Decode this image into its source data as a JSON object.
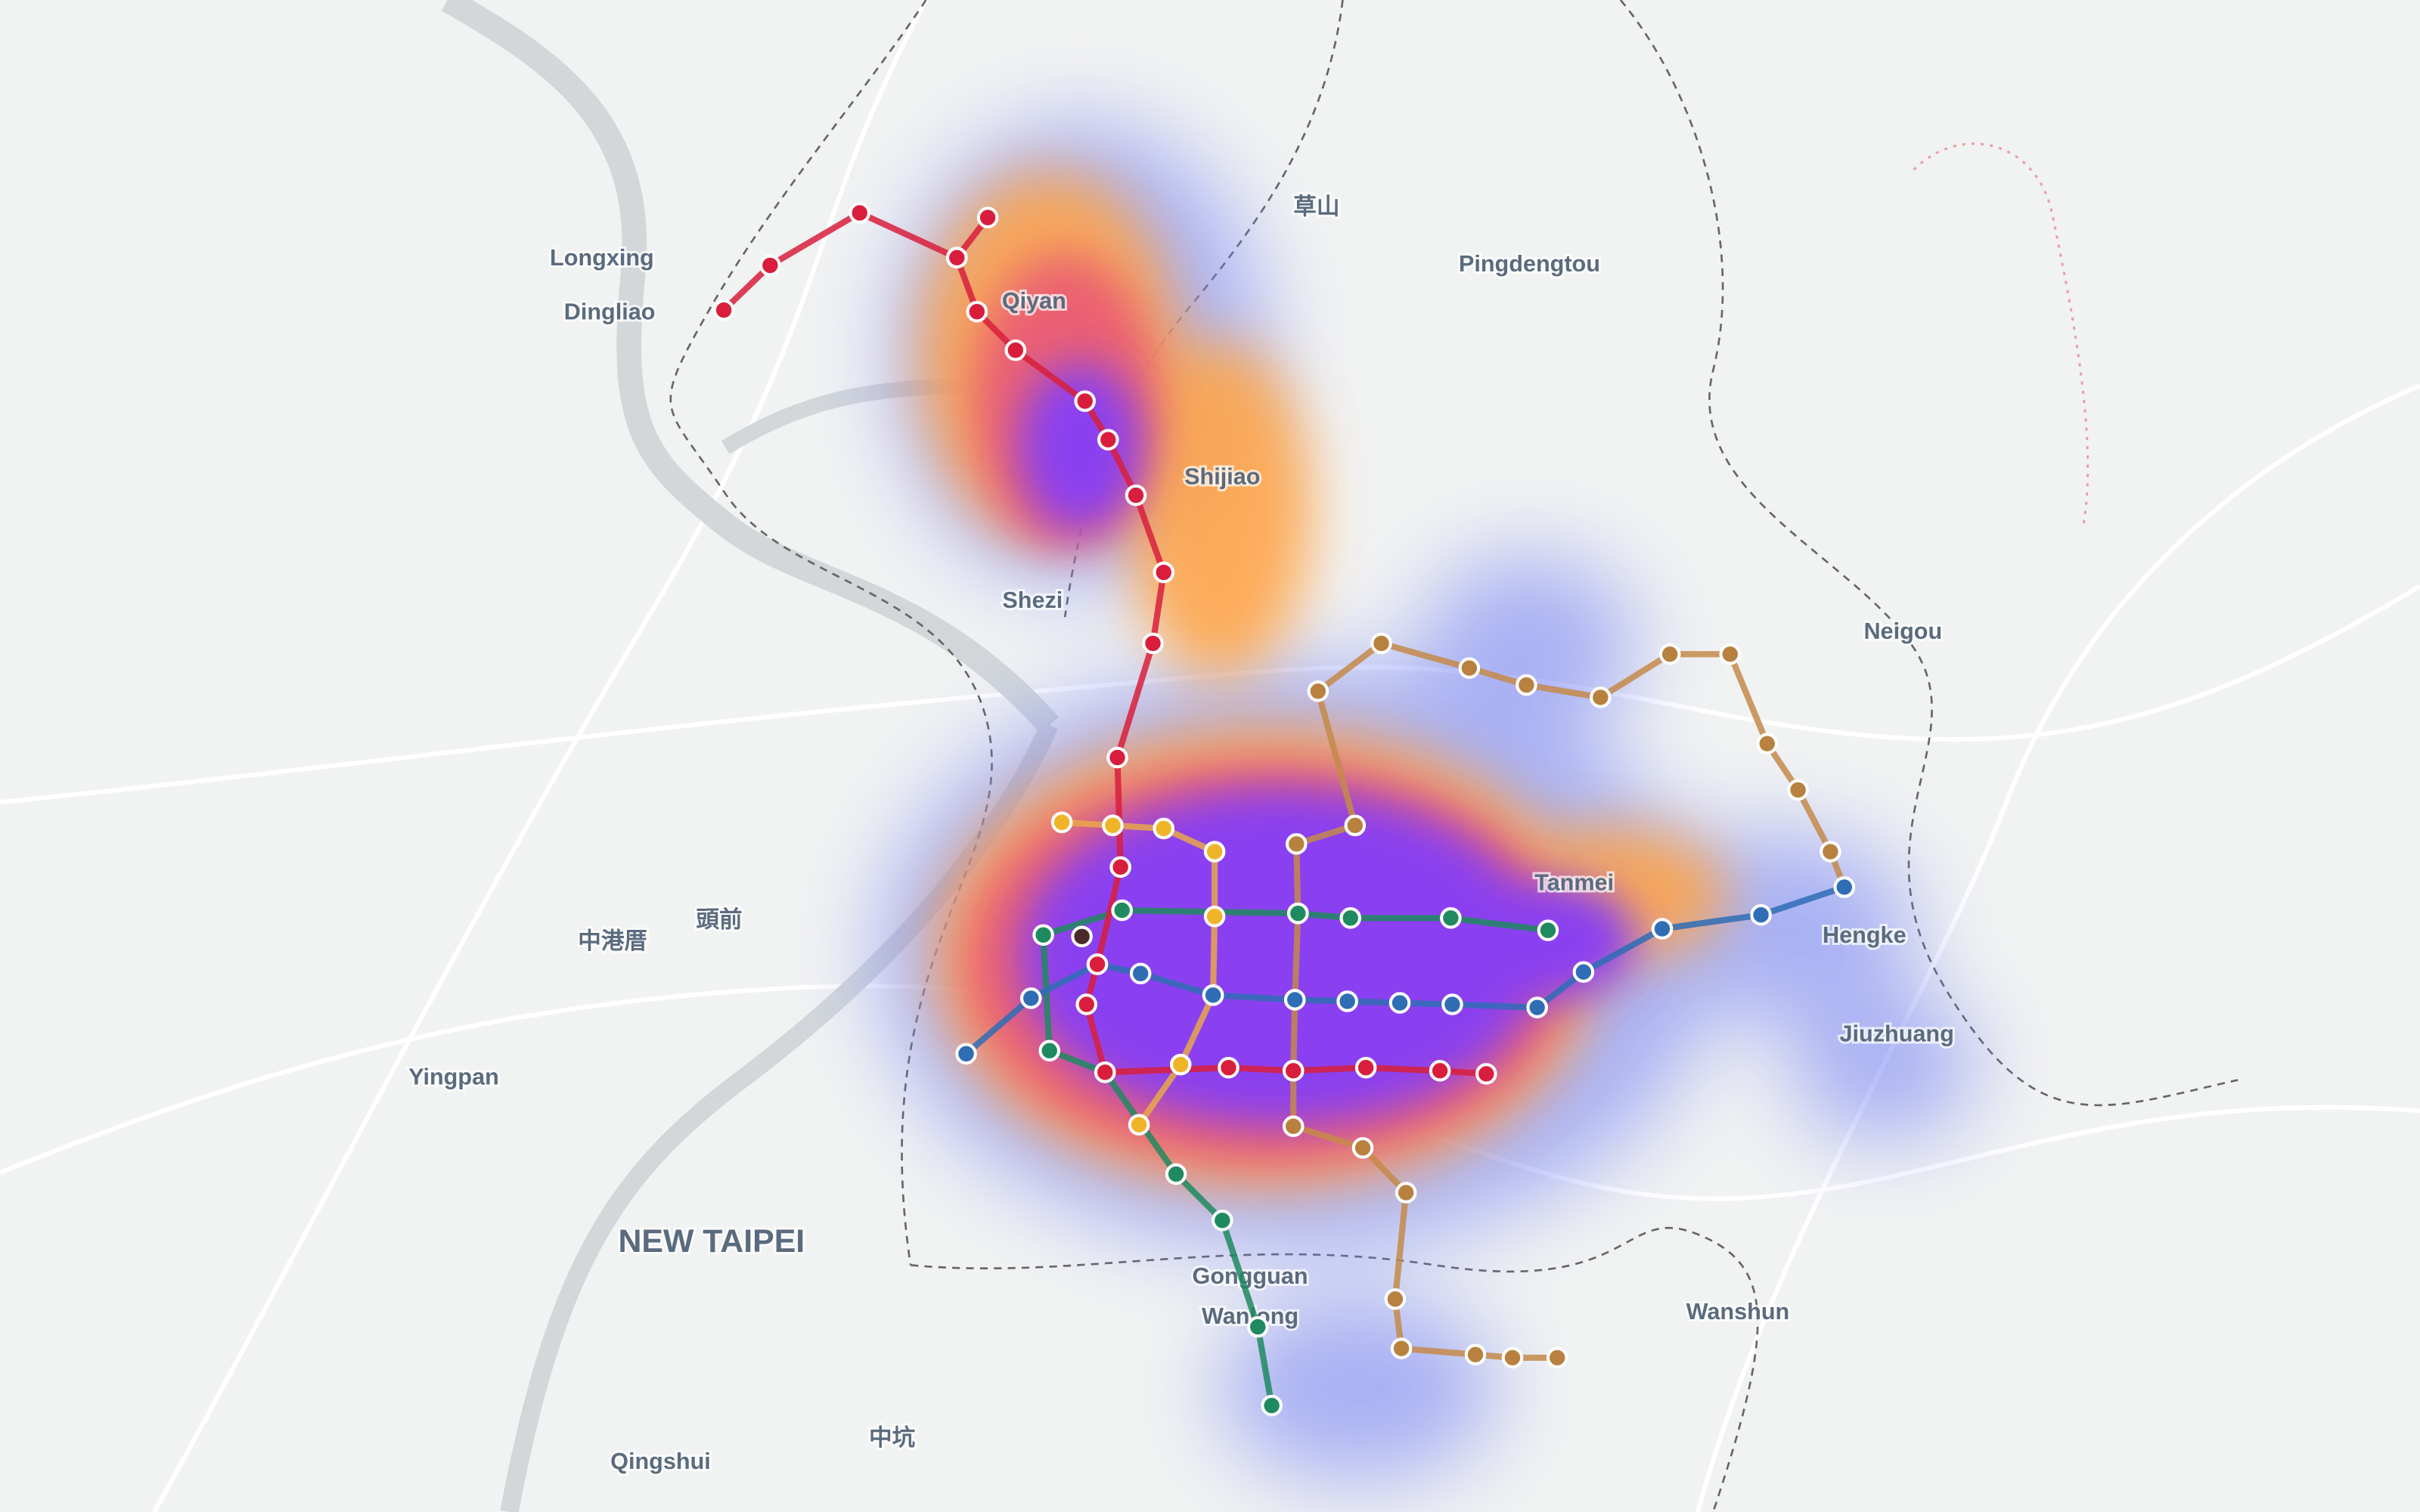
{
  "map": {
    "labels": [
      "Longxing",
      "Dingliao",
      "Qiyan",
      "Shijiao",
      "Shezi",
      "草山",
      "Pingdengtou",
      "Neigou",
      "Tanmei",
      "Hengke",
      "Jiuzhuang",
      "中港厝",
      "頭前",
      "Yingpan",
      "NEW TAIPEI",
      "Gongguan",
      "Wanlong",
      "Wanshun",
      "Qingshui",
      "中坑"
    ]
  }
}
